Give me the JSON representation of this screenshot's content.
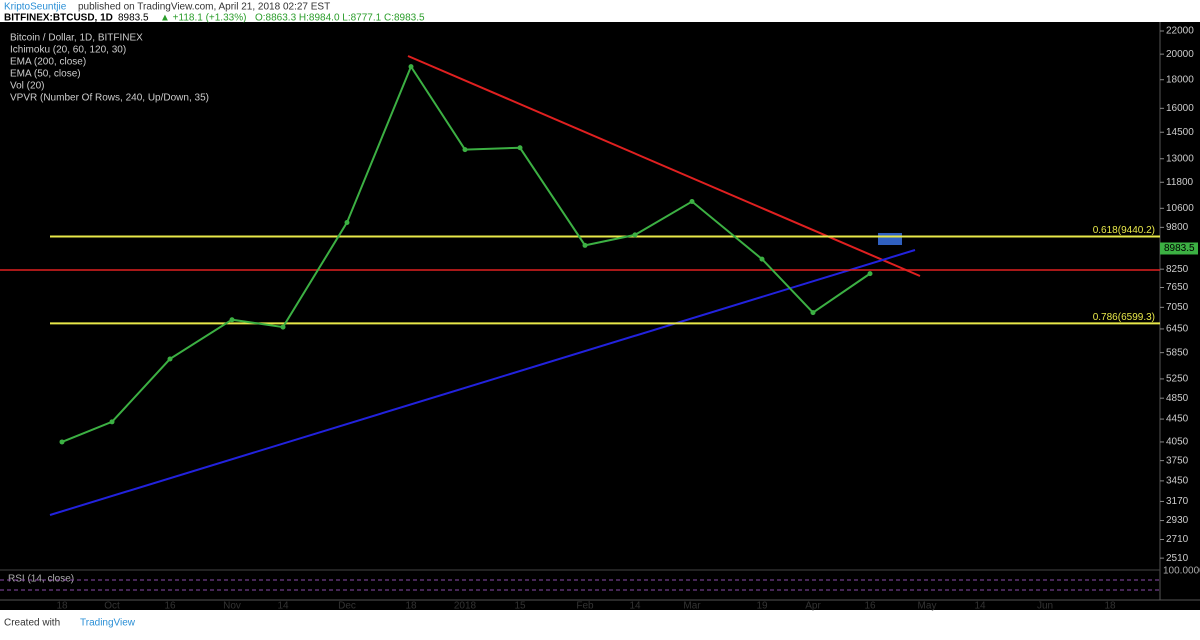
{
  "header": {
    "author": "KriptoSeuntjie",
    "published": "published on TradingView.com, April 21, 2018 02:27 EST",
    "symbol": "BITFINEX:BTCUSD, 1D",
    "last": "8983.5",
    "change": "▲ +118.1 (+1.33%)",
    "ohlc": "O:8863.3 H:8984.0 L:8777.1 C:8983.5"
  },
  "chart_data": {
    "type": "line",
    "title": "Bitcoin / Dollar, 1D, BITFINEX",
    "indicators": [
      "Ichimoku (20, 60, 120, 30)",
      "EMA (200, close)",
      "EMA (50, close)",
      "Vol (20)",
      "VPVR (Number Of Rows, 240, Up/Down, 35)"
    ],
    "categories": [
      "18",
      "Oct",
      "16",
      "Nov",
      "14",
      "Dec",
      "18",
      "2018",
      "15",
      "Feb",
      "14",
      "Mar",
      "19",
      "Apr",
      "16",
      "May",
      "14",
      "Jun",
      "18"
    ],
    "values": [
      4050,
      4400,
      5700,
      6700,
      6500,
      10000,
      19000,
      13500,
      13600,
      9100,
      9500,
      10900,
      8600,
      6900,
      8100,
      null,
      null,
      null,
      null
    ],
    "color": "#3cb043",
    "log_scale": true,
    "ylim": [
      2410,
      22830
    ],
    "yticks": [
      2510,
      2710,
      2930,
      3170,
      3450,
      3750,
      4050,
      4450,
      4850,
      5250,
      5850,
      6450,
      7050,
      7650,
      8250,
      9800,
      10600,
      11800,
      13000,
      14500,
      16000,
      18000,
      20000,
      22000
    ],
    "last_price": 8983.5,
    "levels": [
      {
        "label": "0.618(9440.2)",
        "value": 9440.2,
        "color": "#e8e84a"
      },
      {
        "label": "0.786(6599.3)",
        "value": 6599.3,
        "color": "#e8e84a"
      }
    ],
    "rsi": {
      "label": "RSI (14, close)",
      "tick": "100.0000"
    }
  },
  "footer": {
    "created": "Created with",
    "brand": "TradingView"
  }
}
